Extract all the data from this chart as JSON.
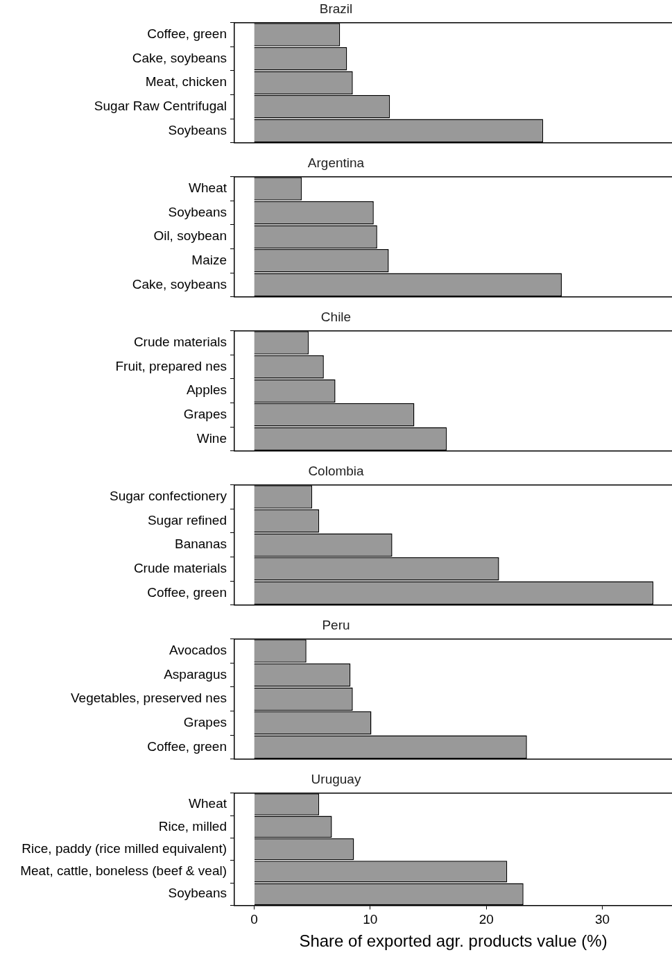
{
  "chart_data": [
    {
      "type": "bar",
      "orientation": "horizontal",
      "title": "Brazil",
      "categories": [
        "Coffee, green",
        "Cake, soybeans",
        "Meat, chicken",
        "Sugar Raw Centrifugal",
        "Soybeans"
      ],
      "values": [
        7.4,
        8.0,
        8.5,
        11.7,
        24.9
      ],
      "color": "#999999",
      "xlim": [
        -1.7,
        36
      ],
      "tick_labels": "y"
    },
    {
      "type": "bar",
      "orientation": "horizontal",
      "title": "Argentina",
      "categories": [
        "Wheat",
        "Soybeans",
        "Oil, soybean",
        "Maize",
        "Cake, soybeans"
      ],
      "values": [
        4.1,
        10.3,
        10.6,
        11.6,
        26.5
      ],
      "color": "#999999",
      "xlim": [
        -1.7,
        36
      ],
      "tick_labels": "y"
    },
    {
      "type": "bar",
      "orientation": "horizontal",
      "title": "Chile",
      "categories": [
        "Crude materials",
        "Fruit, prepared nes",
        "Apples",
        "Grapes",
        "Wine"
      ],
      "values": [
        4.7,
        6.0,
        7.0,
        13.8,
        16.6
      ],
      "color": "#999999",
      "xlim": [
        -1.7,
        36
      ],
      "tick_labels": "y"
    },
    {
      "type": "bar",
      "orientation": "horizontal",
      "title": "Colombia",
      "categories": [
        "Sugar confectionery",
        "Sugar refined",
        "Bananas",
        "Crude materials",
        "Coffee, green"
      ],
      "values": [
        5.0,
        5.6,
        11.9,
        21.1,
        34.4
      ],
      "color": "#999999",
      "xlim": [
        -1.7,
        36
      ],
      "tick_labels": "y"
    },
    {
      "type": "bar",
      "orientation": "horizontal",
      "title": "Peru",
      "categories": [
        "Avocados",
        "Asparagus",
        "Vegetables, preserved nes",
        "Grapes",
        "Coffee, green"
      ],
      "values": [
        4.5,
        8.3,
        8.5,
        10.1,
        23.5
      ],
      "color": "#999999",
      "xlim": [
        -1.7,
        36
      ],
      "tick_labels": "y"
    },
    {
      "type": "bar",
      "orientation": "horizontal",
      "title": "Uruguay",
      "xlabel": "Share of exported agr. products value (%)",
      "categories": [
        "Wheat",
        "Rice, milled",
        "Rice, paddy (rice milled equivalent)",
        "Meat, cattle, boneless (beef & veal)",
        "Soybeans"
      ],
      "values": [
        5.6,
        6.7,
        8.6,
        21.8,
        23.2
      ],
      "color": "#999999",
      "xlim": [
        -1.7,
        36
      ],
      "xticks": [
        0,
        10,
        20,
        30
      ]
    }
  ]
}
